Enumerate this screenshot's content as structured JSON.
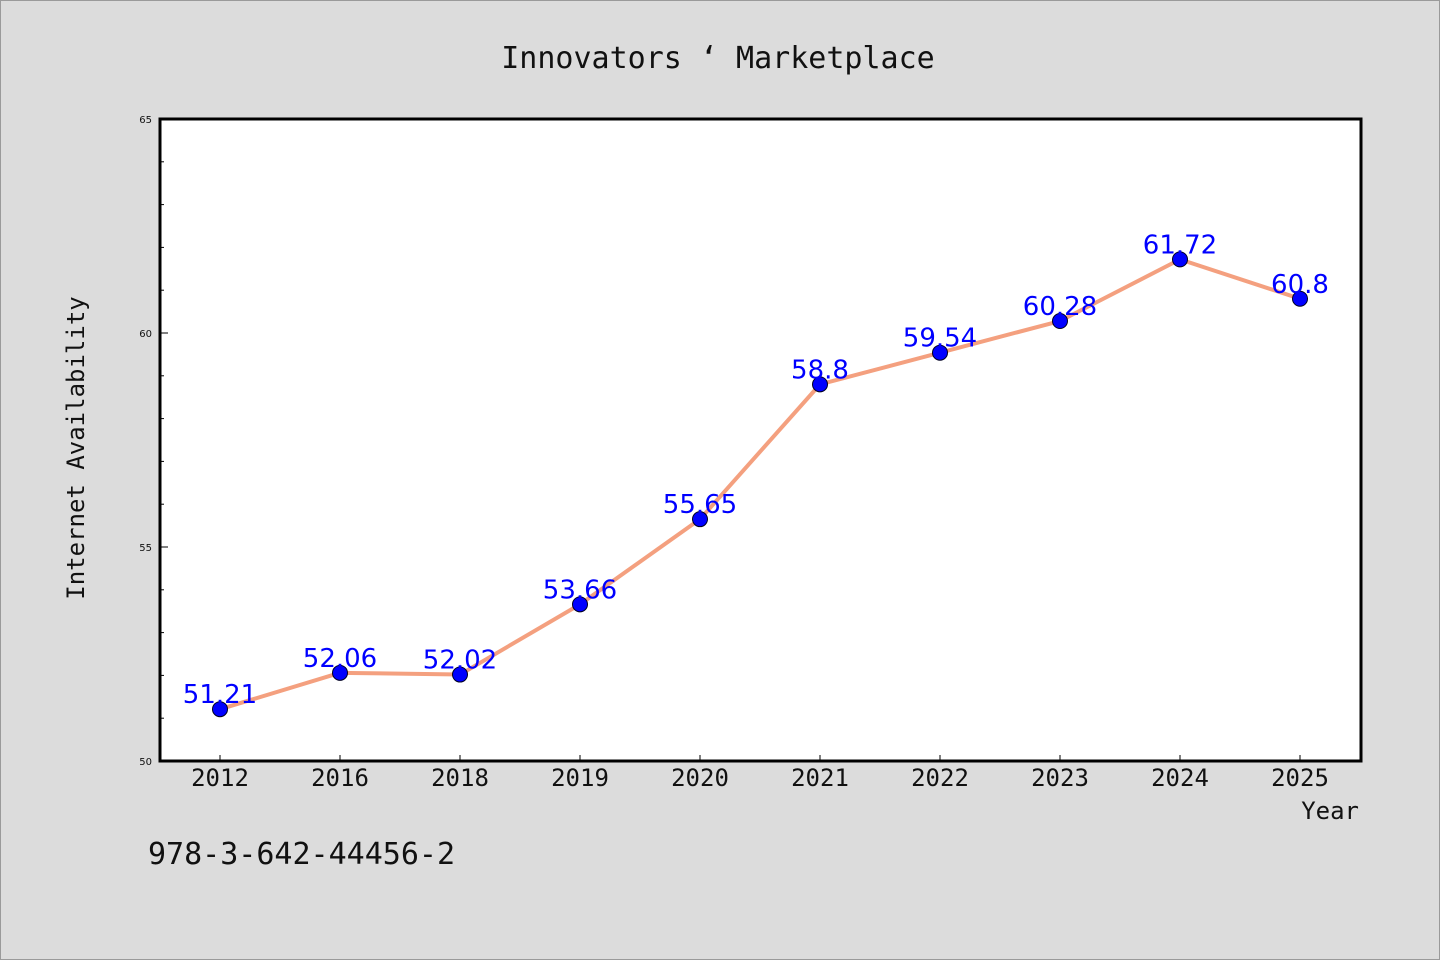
{
  "chart_data": {
    "type": "line",
    "title": "Innovators ‘ Marketplace",
    "xlabel": "Year",
    "ylabel": "Internet Availability",
    "categories": [
      "2012",
      "2016",
      "2018",
      "2019",
      "2020",
      "2021",
      "2022",
      "2023",
      "2024",
      "2025"
    ],
    "series": [
      {
        "values": [
          51.21,
          52.06,
          52.02,
          53.66,
          55.65,
          58.8,
          59.54,
          60.28,
          61.72,
          60.8
        ],
        "data_labels": [
          "51.21",
          "52.06",
          "52.02",
          "53.66",
          "55.65",
          "58.8",
          "59.54",
          "60.28",
          "61.72",
          "60.8"
        ],
        "line_color": "#f4a07f",
        "marker_color": "#0000ff"
      }
    ],
    "ylim": [
      50,
      65
    ],
    "yticks": [
      "50",
      "55",
      "60",
      "65"
    ],
    "grid": false,
    "legend": "none"
  },
  "footer_text": "978-3-642-44456-2",
  "colors": {
    "background": "#dcdcdc",
    "plot_background": "#ffffff",
    "label_color": "#0000ff"
  }
}
